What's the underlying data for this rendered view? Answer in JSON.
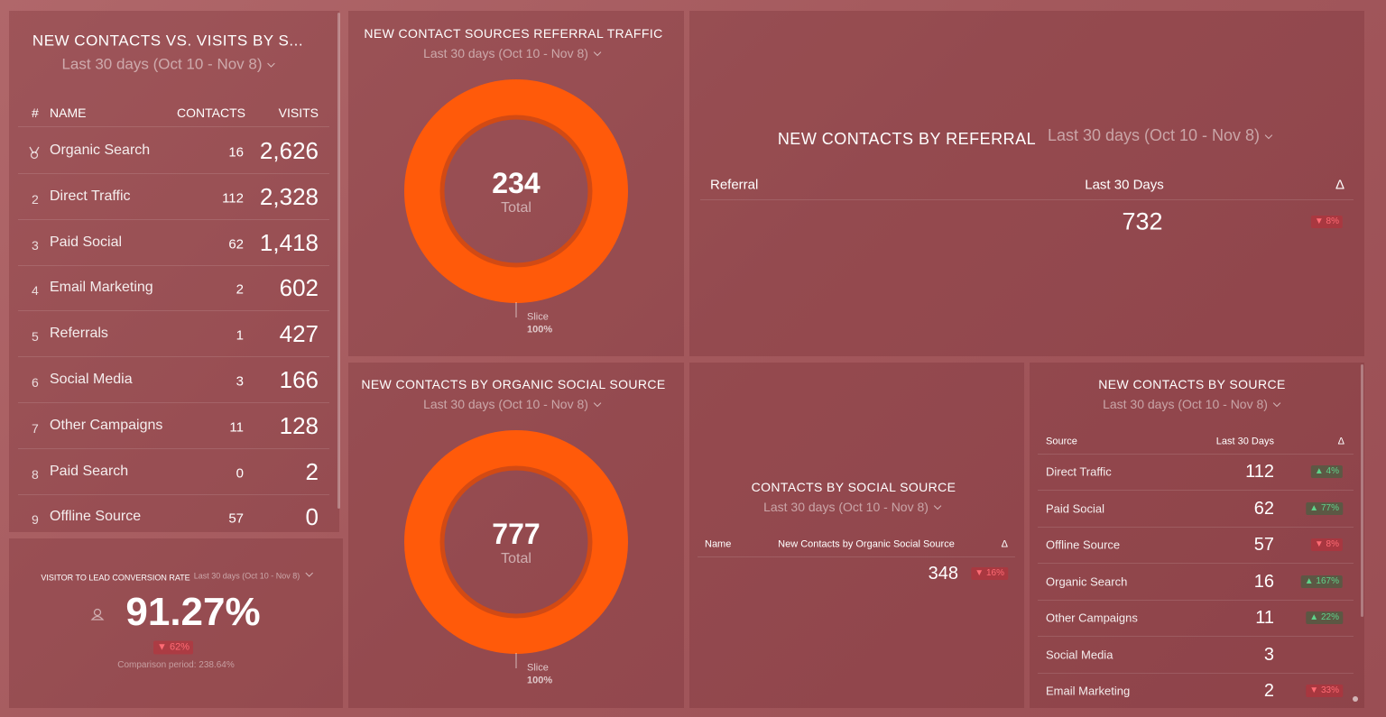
{
  "panels": {
    "contacts_vs_visits": {
      "title": "NEW CONTACTS VS. VISITS BY S...",
      "date_range": "Last 30 days (Oct 10 - Nov 8)",
      "columns": [
        "#",
        "NAME",
        "CONTACTS",
        "VISITS"
      ],
      "rows": [
        [
          null,
          "Organic Search",
          "16",
          "2,626"
        ],
        [
          "2",
          "Direct Traffic",
          "112",
          "2,328"
        ],
        [
          "3",
          "Paid Social",
          "62",
          "1,418"
        ],
        [
          "4",
          "Email Marketing",
          "2",
          "602"
        ],
        [
          "5",
          "Referrals",
          "1",
          "427"
        ],
        [
          "6",
          "Social Media",
          "3",
          "166"
        ],
        [
          "7",
          "Other Campaigns",
          "11",
          "128"
        ],
        [
          "8",
          "Paid Search",
          "0",
          "2"
        ],
        [
          "9",
          "Offline Source",
          "57",
          "0"
        ]
      ]
    },
    "conversion_rate": {
      "title": "VISITOR TO LEAD CONVERSION RATE",
      "date_range": "Last 30 days (Oct 10 - Nov 8)",
      "value": "91.27%",
      "change": "▼ 62%",
      "comparison": "Comparison period: 238.64%"
    },
    "referral_traffic": {
      "title": "NEW CONTACT SOURCES REFERRAL TRAFFIC",
      "date_range": "Last 30 days (Oct 10 - Nov 8)",
      "total": "234",
      "total_label": "Total",
      "slice_label": "Slice",
      "slice_share": "100%"
    },
    "organic_social": {
      "title": "NEW CONTACTS BY ORGANIC SOCIAL SOURCE",
      "date_range": "Last 30 days (Oct 10 - Nov 8)",
      "total": "777",
      "total_label": "Total",
      "slice_label": "Slice",
      "slice_share": "100%"
    },
    "by_referral": {
      "title": "NEW CONTACTS BY REFERRAL",
      "date_range": "Last 30 days (Oct 10 - Nov 8)",
      "columns": [
        "Referral",
        "Last 30 Days",
        "Δ"
      ],
      "value": "732",
      "change": "▼ 8%"
    },
    "social_source": {
      "title": "CONTACTS BY SOCIAL SOURCE",
      "date_range": "Last 30 days (Oct 10 - Nov 8)",
      "columns": [
        "Name",
        "New Contacts by Organic Social Source",
        "Δ"
      ],
      "value": "348",
      "change": "▼ 16%"
    },
    "by_source": {
      "title": "NEW CONTACTS BY SOURCE",
      "date_range": "Last 30 days (Oct 10 - Nov 8)",
      "columns": [
        "Source",
        "Last 30 Days",
        "Δ"
      ],
      "rows": [
        [
          "Direct Traffic",
          "112",
          "▲ 4%"
        ],
        [
          "Paid Social",
          "62",
          "▲ 77%"
        ],
        [
          "Offline Source",
          "57",
          "▼ 8%"
        ],
        [
          "Organic Search",
          "16",
          "▲ 167%"
        ],
        [
          "Other Campaigns",
          "11",
          "▲ 22%"
        ],
        [
          "Social Media",
          "3",
          null
        ],
        [
          "Email Marketing",
          "2",
          "▼ 33%"
        ]
      ]
    }
  }
}
